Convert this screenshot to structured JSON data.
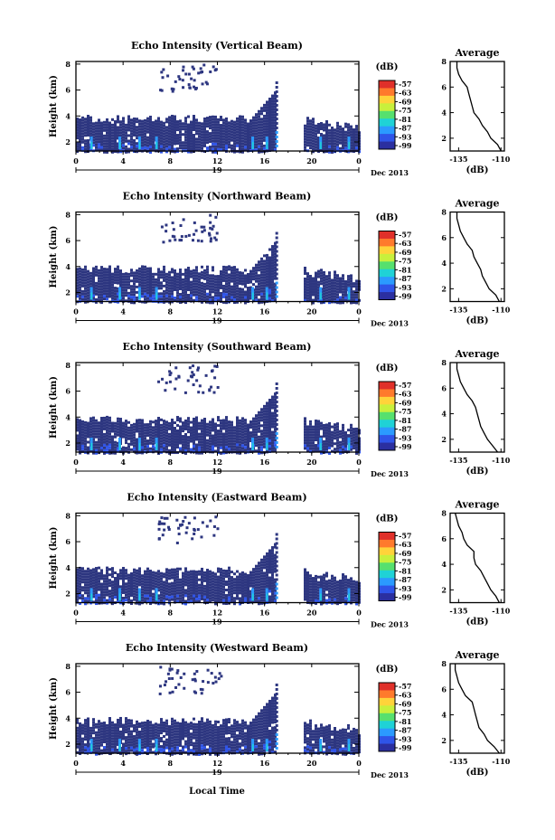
{
  "figure": {
    "xlabel": "Local Time"
  },
  "colorbar": {
    "unit": "(dB)",
    "tick_labels": [
      "-57",
      "-63",
      "-69",
      "-75",
      "-81",
      "-87",
      "-93",
      "-99"
    ],
    "colors": [
      "#e0302a",
      "#ff7a2c",
      "#ffd33a",
      "#c8f03c",
      "#56e06e",
      "#1fd2d6",
      "#2b9aff",
      "#2f54e8",
      "#2b2fa0"
    ]
  },
  "chart_data": [
    {
      "type": "heatmap",
      "beam": "Vertical Beam",
      "title": "Echo Intensity (Vertical Beam)",
      "ylabel": "Height (km)",
      "x_ticks": [
        "0",
        "4",
        "8",
        "12",
        "16",
        "20",
        "0"
      ],
      "y_ticks": [
        "2",
        "4",
        "6",
        "8"
      ],
      "date_labels": {
        "day": "19",
        "month": "Dec 2013"
      },
      "average_profile": {
        "title": "Average",
        "xlabel": "(dB)",
        "x_ticks": [
          "-135",
          "-110"
        ],
        "xlim": [
          -140,
          -108
        ],
        "ylim": [
          1,
          8
        ],
        "y_ticks": [
          "2",
          "4",
          "6",
          "8"
        ],
        "height": [
          1.0,
          1.5,
          2.0,
          2.5,
          3.0,
          3.5,
          4.0,
          4.5,
          5.0,
          5.5,
          6.0,
          6.5,
          7.0,
          7.5,
          8.0
        ],
        "values": [
          -110,
          -112,
          -116,
          -118,
          -121,
          -123,
          -126,
          -127,
          -128,
          -129,
          -130,
          -133,
          -135,
          -136,
          -136
        ]
      }
    },
    {
      "type": "heatmap",
      "beam": "Northward Beam",
      "title": "Echo Intensity (Northward Beam)",
      "ylabel": "Height (km)",
      "x_ticks": [
        "0",
        "4",
        "8",
        "12",
        "16",
        "20",
        "0"
      ],
      "y_ticks": [
        "2",
        "4",
        "6",
        "8"
      ],
      "date_labels": {
        "day": "19",
        "month": "Dec 2013"
      },
      "average_profile": {
        "title": "Average",
        "xlabel": "(dB)",
        "x_ticks": [
          "-135",
          "-110"
        ],
        "xlim": [
          -140,
          -108
        ],
        "ylim": [
          1,
          8
        ],
        "y_ticks": [
          "2",
          "4",
          "6",
          "8"
        ],
        "height": [
          1.0,
          1.5,
          2.0,
          2.5,
          3.0,
          3.5,
          4.0,
          4.5,
          5.0,
          5.5,
          6.0,
          6.5,
          7.0,
          7.5,
          8.0
        ],
        "values": [
          -111,
          -113,
          -117,
          -119,
          -121,
          -122,
          -124,
          -126,
          -127,
          -130,
          -132,
          -134,
          -135,
          -136,
          -136
        ]
      }
    },
    {
      "type": "heatmap",
      "beam": "Southward Beam",
      "title": "Echo Intensity (Southward Beam)",
      "ylabel": "Height (km)",
      "x_ticks": [
        "0",
        "4",
        "8",
        "12",
        "16",
        "20",
        "0"
      ],
      "y_ticks": [
        "2",
        "4",
        "6",
        "8"
      ],
      "date_labels": {
        "day": "19",
        "month": "Dec 2013"
      },
      "average_profile": {
        "title": "Average",
        "xlabel": "(dB)",
        "x_ticks": [
          "-135",
          "-110"
        ],
        "xlim": [
          -140,
          -108
        ],
        "ylim": [
          1,
          8
        ],
        "y_ticks": [
          "2",
          "4",
          "6",
          "8"
        ],
        "height": [
          1.0,
          1.5,
          2.0,
          2.5,
          3.0,
          3.5,
          4.0,
          4.5,
          5.0,
          5.5,
          6.0,
          6.5,
          7.0,
          7.5,
          8.0
        ],
        "values": [
          -112,
          -115,
          -118,
          -120,
          -122,
          -123,
          -124,
          -125,
          -127,
          -130,
          -132,
          -134,
          -135,
          -136,
          -136
        ]
      }
    },
    {
      "type": "heatmap",
      "beam": "Eastward Beam",
      "title": "Echo Intensity (Eastward Beam)",
      "ylabel": "Height (km)",
      "x_ticks": [
        "0",
        "4",
        "8",
        "12",
        "16",
        "20",
        "0"
      ],
      "y_ticks": [
        "2",
        "4",
        "6",
        "8"
      ],
      "date_labels": {
        "day": "19",
        "month": "Dec 2013"
      },
      "average_profile": {
        "title": "Average",
        "xlabel": "(dB)",
        "x_ticks": [
          "-135",
          "-110"
        ],
        "xlim": [
          -140,
          -108
        ],
        "ylim": [
          1,
          8
        ],
        "y_ticks": [
          "2",
          "4",
          "6",
          "8"
        ],
        "height": [
          1.0,
          1.5,
          2.0,
          2.5,
          3.0,
          3.5,
          4.0,
          4.5,
          5.0,
          5.5,
          6.0,
          6.5,
          7.0,
          7.5,
          8.0
        ],
        "values": [
          -111,
          -113,
          -116,
          -118,
          -120,
          -122,
          -125,
          -126,
          -126,
          -130,
          -132,
          -133,
          -135,
          -136,
          -137
        ]
      }
    },
    {
      "type": "heatmap",
      "beam": "Westward Beam",
      "title": "Echo Intensity (Westward Beam)",
      "ylabel": "Height (km)",
      "x_ticks": [
        "0",
        "4",
        "8",
        "12",
        "16",
        "20",
        "0"
      ],
      "y_ticks": [
        "2",
        "4",
        "6",
        "8"
      ],
      "date_labels": {
        "day": "19",
        "month": "Dec 2013"
      },
      "average_profile": {
        "title": "Average",
        "xlabel": "(dB)",
        "x_ticks": [
          "-135",
          "-110"
        ],
        "xlim": [
          -140,
          -108
        ],
        "ylim": [
          1,
          8
        ],
        "y_ticks": [
          "2",
          "4",
          "6",
          "8"
        ],
        "height": [
          1.0,
          1.5,
          2.0,
          2.5,
          3.0,
          3.5,
          4.0,
          4.5,
          5.0,
          5.5,
          6.0,
          6.5,
          7.0,
          7.5,
          8.0
        ],
        "values": [
          -111,
          -114,
          -118,
          -120,
          -123,
          -124,
          -125,
          -126,
          -127,
          -131,
          -133,
          -135,
          -136,
          -137,
          -137
        ]
      }
    }
  ]
}
